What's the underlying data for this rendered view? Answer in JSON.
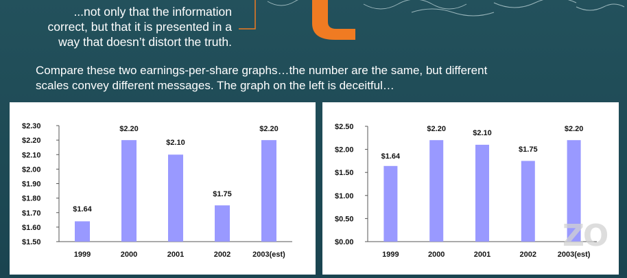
{
  "slide": {
    "quote_lines": [
      "...not only that the information",
      "correct, but that it is presented in a",
      "way that doesn’t distort the truth."
    ],
    "compare_lines": [
      "Compare these two earnings-per-share graphs…the number are the same, but different",
      "scales convey different messages. The graph on the left is deceitful…"
    ],
    "accent_color": "#f07b22",
    "watermark_text": "ZO"
  },
  "chart_data": [
    {
      "type": "bar",
      "categories": [
        "1999",
        "2000",
        "2001",
        "2002",
        "2003(est)"
      ],
      "values": [
        1.64,
        2.2,
        2.1,
        1.75,
        2.2
      ],
      "value_labels": [
        "$1.64",
        "$2.20",
        "$2.10",
        "$1.75",
        "$2.20"
      ],
      "ylim": [
        1.5,
        2.3
      ],
      "yticks": [
        1.5,
        1.6,
        1.7,
        1.8,
        1.9,
        2.0,
        2.1,
        2.2,
        2.3
      ],
      "ytick_labels": [
        "$1.50",
        "$1.60",
        "$1.70",
        "$1.80",
        "$1.90",
        "$2.00",
        "$2.10",
        "$2.20",
        "$2.30"
      ],
      "bar_color": "#9999ff",
      "grid": false
    },
    {
      "type": "bar",
      "categories": [
        "1999",
        "2000",
        "2001",
        "2002",
        "2003(est)"
      ],
      "values": [
        1.64,
        2.2,
        2.1,
        1.75,
        2.2
      ],
      "value_labels": [
        "$1.64",
        "$2.20",
        "$2.10",
        "$1.75",
        "$2.20"
      ],
      "ylim": [
        0,
        2.5
      ],
      "yticks": [
        0,
        0.5,
        1.0,
        1.5,
        2.0,
        2.5
      ],
      "ytick_labels": [
        "$0.00",
        "$0.50",
        "$1.00",
        "$1.50",
        "$2.00",
        "$2.50"
      ],
      "bar_color": "#9999ff",
      "grid": false
    }
  ]
}
